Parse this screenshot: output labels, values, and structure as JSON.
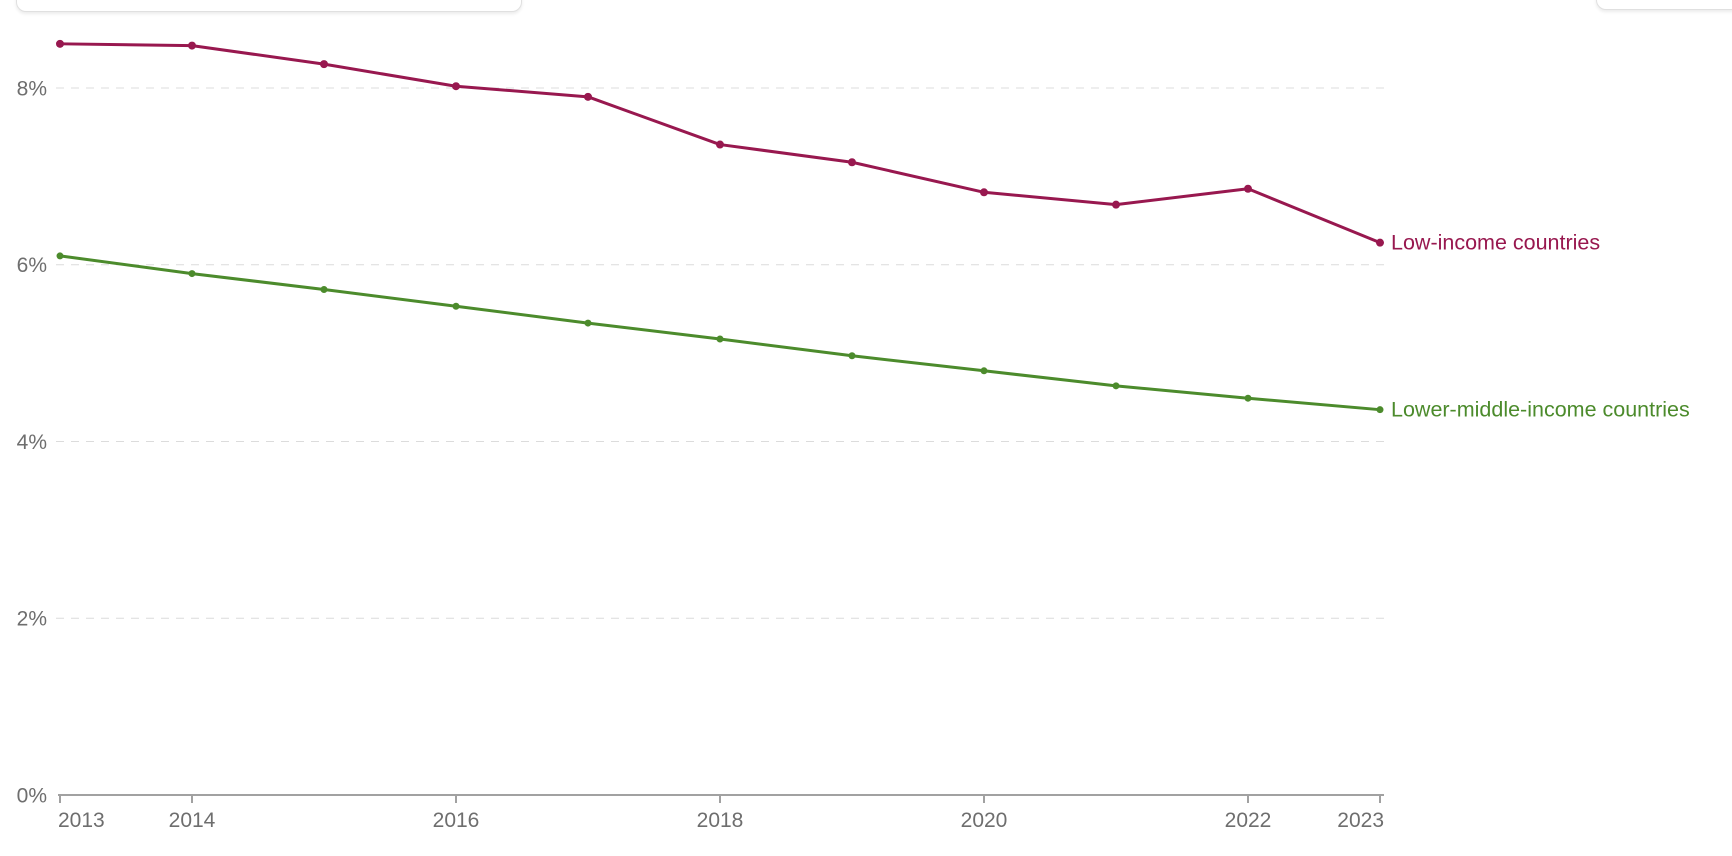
{
  "chart_data": {
    "type": "line",
    "x": [
      2013,
      2014,
      2015,
      2016,
      2017,
      2018,
      2019,
      2020,
      2021,
      2022,
      2023
    ],
    "series": [
      {
        "name": "Low-income countries",
        "color": "#98184f",
        "values": [
          8.5,
          8.48,
          8.27,
          8.02,
          7.9,
          7.36,
          7.16,
          6.82,
          6.68,
          6.86,
          6.25
        ]
      },
      {
        "name": "Lower-middle-income countries",
        "color": "#4c8b2c",
        "values": [
          6.1,
          5.9,
          5.72,
          5.53,
          5.34,
          5.16,
          4.97,
          4.8,
          4.63,
          4.49,
          4.36
        ]
      }
    ],
    "yticks": [
      {
        "value": 0,
        "label": "0%"
      },
      {
        "value": 2,
        "label": "2%"
      },
      {
        "value": 4,
        "label": "4%"
      },
      {
        "value": 6,
        "label": "6%"
      },
      {
        "value": 8,
        "label": "8%"
      }
    ],
    "xticks": [
      {
        "value": 2013,
        "label": "2013"
      },
      {
        "value": 2014,
        "label": "2014"
      },
      {
        "value": 2016,
        "label": "2016"
      },
      {
        "value": 2018,
        "label": "2018"
      },
      {
        "value": 2020,
        "label": "2020"
      },
      {
        "value": 2022,
        "label": "2022"
      },
      {
        "value": 2023,
        "label": "2023"
      }
    ],
    "ylim": [
      0,
      8.6
    ],
    "grid": "horizontal-dashed",
    "legend_position": "line-end-labels"
  },
  "styles": {
    "grid_color": "#dcdcdc",
    "axis_color": "#a1a1a1",
    "tick_label_color": "#6e6e6e",
    "background": "#ffffff"
  }
}
